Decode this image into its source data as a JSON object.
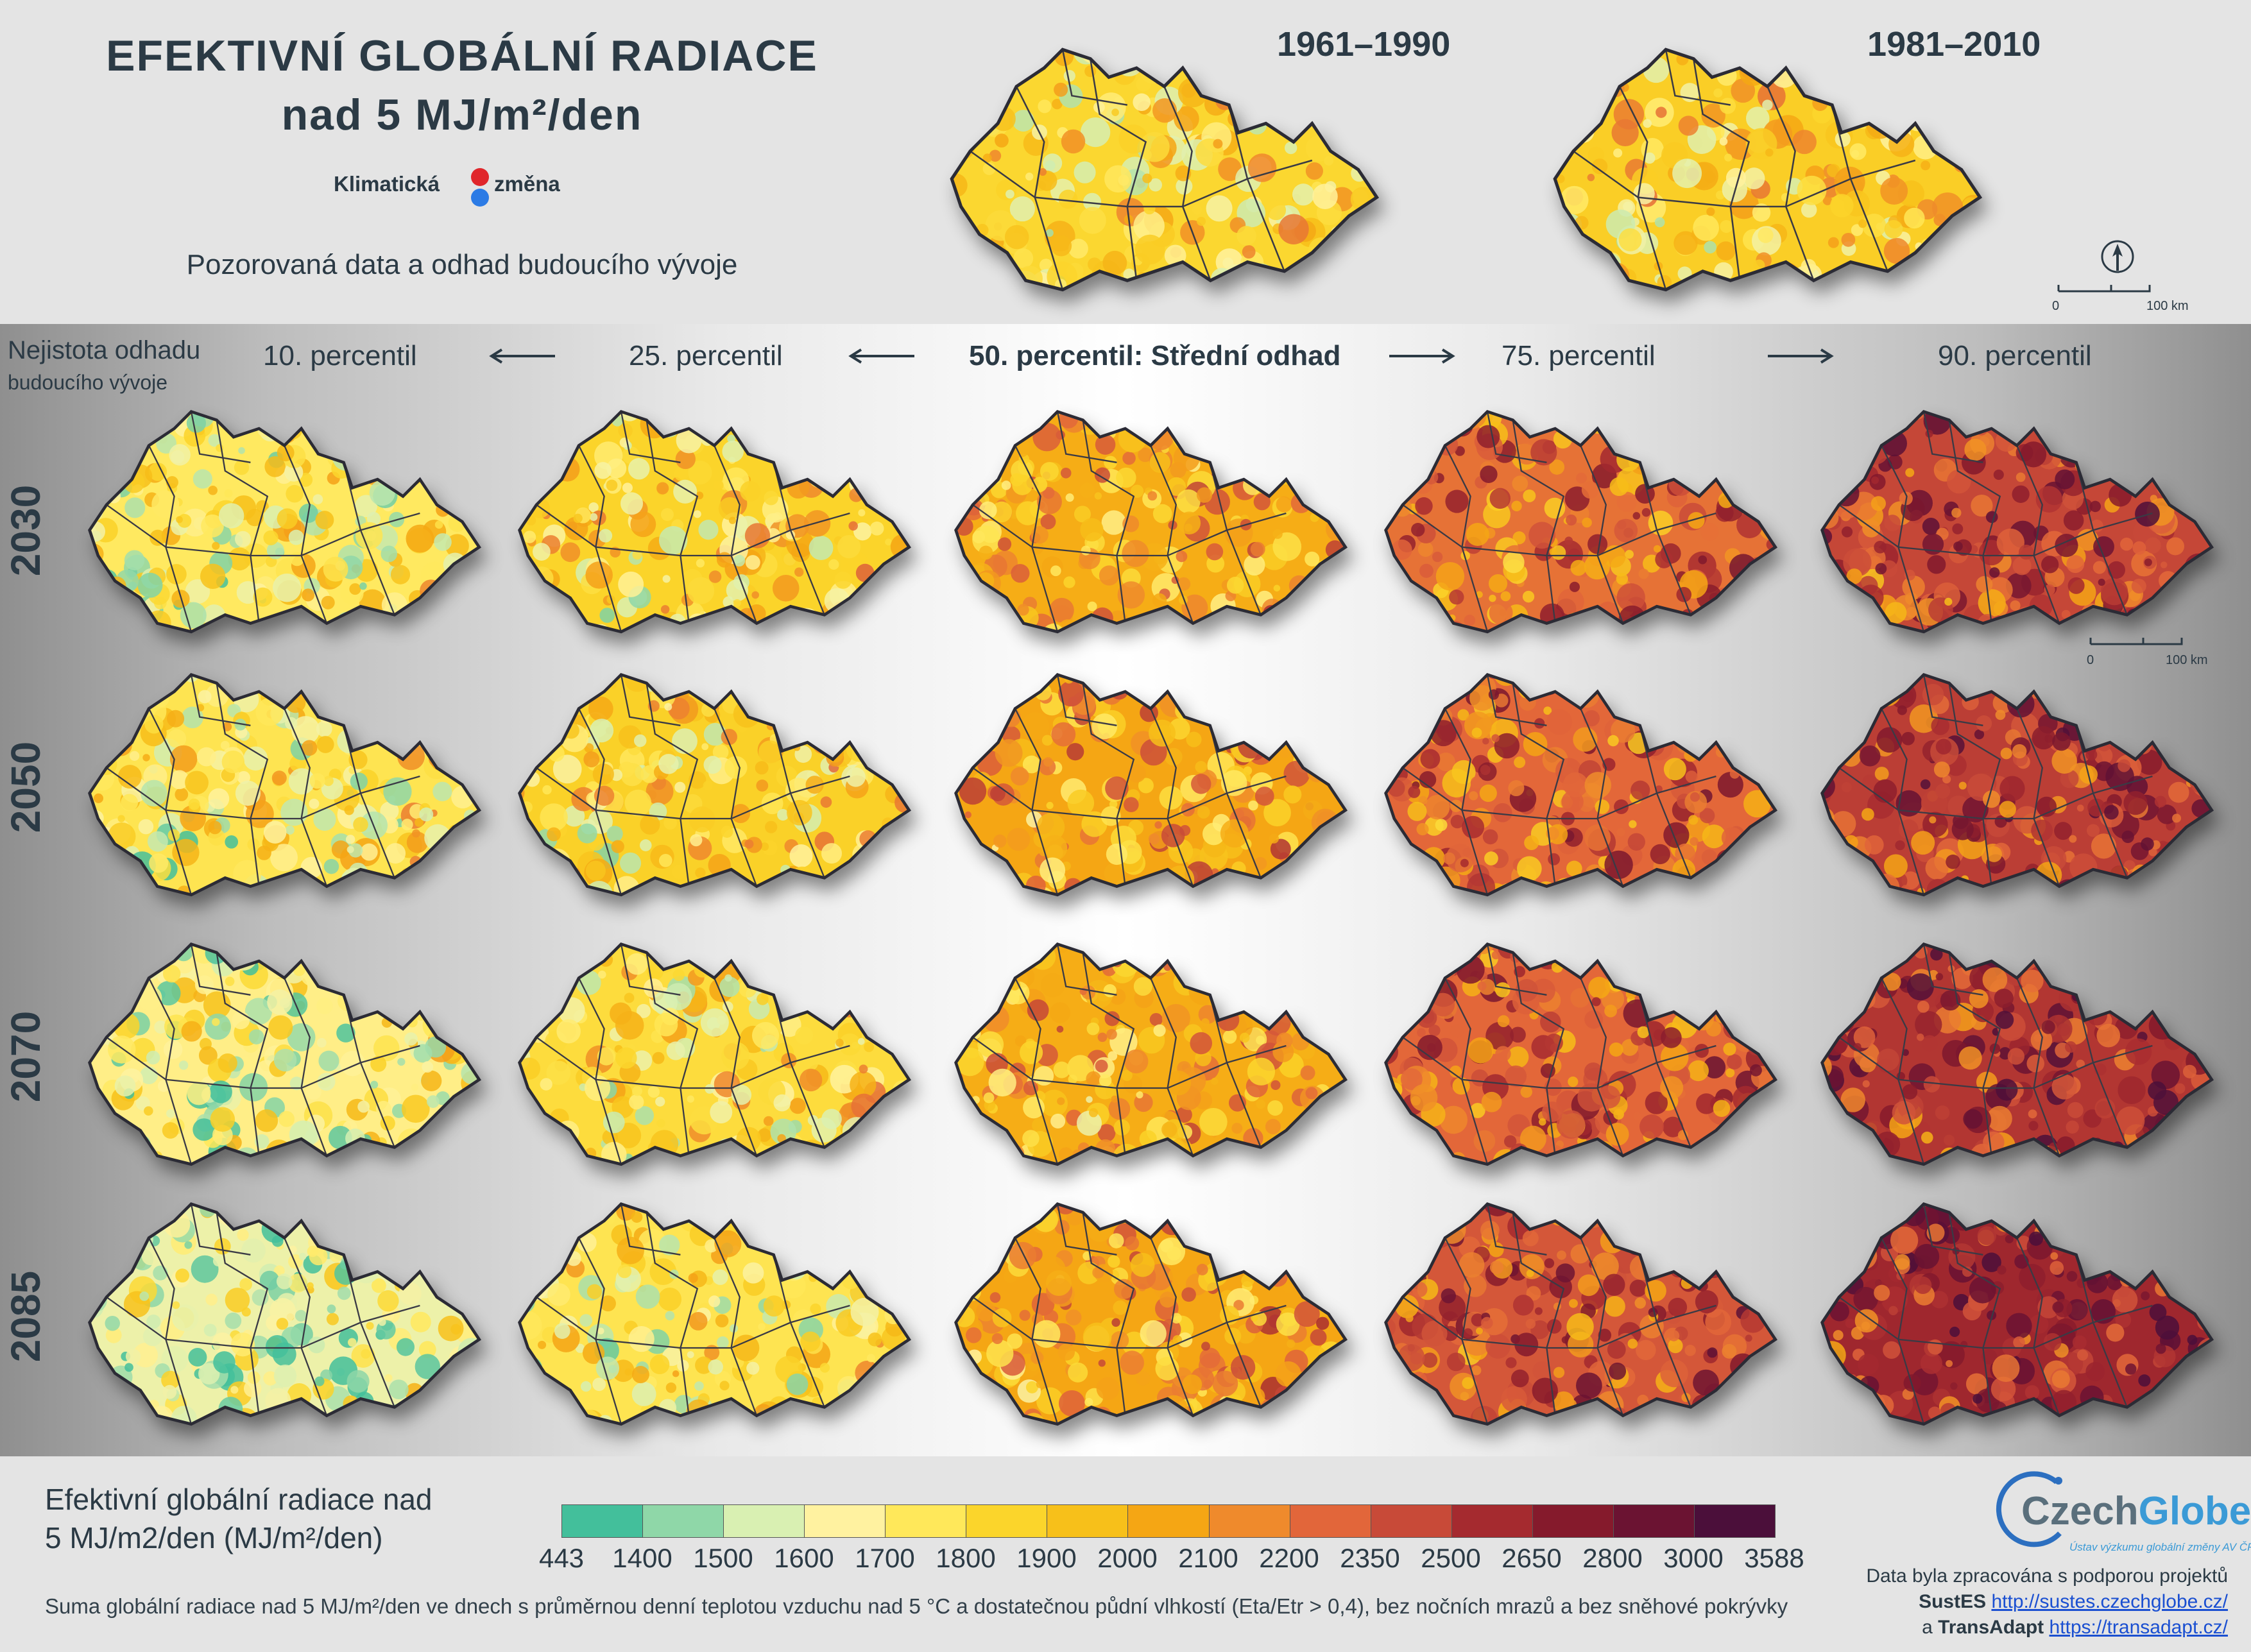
{
  "title": {
    "line1": "EFEKTIVNÍ GLOBÁLNÍ RADIACE",
    "line2": "nad 5 MJ/m²/den"
  },
  "brand": {
    "word1": "Klimatická",
    "word2": "změna"
  },
  "subtitle": "Pozorovaná data a odhad budoucího vývoje",
  "observed_periods": [
    "1961–1990",
    "1981–2010"
  ],
  "uncertainty": {
    "line1": "Nejistota odhadu",
    "line2": "budoucího vývoje"
  },
  "percentiles": [
    "10. percentil",
    "25. percentil",
    "50. percentil: Střední odhad",
    "75. percentil",
    "90. percentil"
  ],
  "years": [
    "2030",
    "2050",
    "2070",
    "2085"
  ],
  "scale_bar": {
    "zero": "0",
    "end": "100 km"
  },
  "legend": {
    "title_line1": "Efektivní globální radiace nad",
    "title_line2": "5 MJ/m2/den (MJ/m²/den)",
    "ticks": [
      "443",
      "1400",
      "1500",
      "1600",
      "1700",
      "1800",
      "1900",
      "2000",
      "2100",
      "2200",
      "2350",
      "2500",
      "2650",
      "2800",
      "3000",
      "3588"
    ],
    "colors": [
      "#43bf9b",
      "#8fd7a8",
      "#d9f0b2",
      "#fff2a0",
      "#ffe85a",
      "#fbd52b",
      "#f7c01a",
      "#f5a614",
      "#ef8a2c",
      "#e2663a",
      "#c84a38",
      "#a52a2f",
      "#851a2c",
      "#6b1332",
      "#4b0f3a"
    ],
    "note": "Suma globální radiace nad 5 MJ/m²/den ve dnech s průměrnou denní teplotou vzduchu nad 5 °C a dostatečnou půdní vlhkostí (Eta/Etr > 0,4), bez nočních mrazů a bez sněhové pokrývky"
  },
  "logo": {
    "part1": "Czech",
    "part2": "Globe",
    "sub": "Ústav výzkumu globální změny AV ČR, v. v. i."
  },
  "credits": {
    "line1": "Data byla zpracována s podporou projektů",
    "p1_name": "SustES",
    "p1_url": "http://sustes.czechglobe.cz/",
    "and": "a",
    "p2_name": "TransAdapt",
    "p2_url": "https://transadapt.cz/"
  },
  "map_shading": {
    "observed": [
      0.35,
      0.38
    ],
    "forecast": [
      [
        0.28,
        0.36,
        0.48,
        0.62,
        0.72
      ],
      [
        0.3,
        0.37,
        0.5,
        0.64,
        0.74
      ],
      [
        0.24,
        0.33,
        0.48,
        0.64,
        0.76
      ],
      [
        0.18,
        0.3,
        0.5,
        0.68,
        0.8
      ]
    ]
  }
}
